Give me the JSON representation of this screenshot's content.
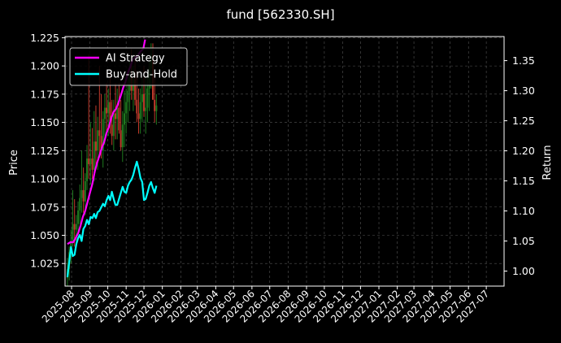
{
  "chart_data": {
    "type": "line",
    "title": "fund [562330.SH]",
    "ylabel": "Price",
    "y2label": "Return",
    "ylim": [
      1.005,
      1.226
    ],
    "y2lim": [
      0.975,
      1.39
    ],
    "y_ticks": [
      "1.025",
      "1.050",
      "1.075",
      "1.100",
      "1.125",
      "1.150",
      "1.175",
      "1.200",
      "1.225"
    ],
    "y2_ticks": [
      "1.00",
      "1.05",
      "1.10",
      "1.15",
      "1.20",
      "1.25",
      "1.30",
      "1.35"
    ],
    "x_ticks": [
      "2025-08",
      "2025-09",
      "2025-10",
      "2025-11",
      "2025-12",
      "2026-01",
      "2026-02",
      "2026-03",
      "2026-04",
      "2026-05",
      "2026-06",
      "2026-07",
      "2026-08",
      "2026-09",
      "2026-10",
      "2026-11",
      "2026-12",
      "2027-01",
      "2027-02",
      "2027-03",
      "2027-04",
      "2027-05",
      "2027-06",
      "2027-07"
    ],
    "grid": true,
    "legend_position": "top-left",
    "colors": {
      "background": "#000000",
      "grid": "#555555",
      "text": "#ffffff",
      "up": "#1f7a1f",
      "down": "#c0392b",
      "ai_strategy": "#ff00ff",
      "buy_and_hold": "#00ffff"
    },
    "candlestick": {
      "name": "Price",
      "axis": "left",
      "dates": [
        "2025-07-25",
        "2025-07-28",
        "2025-07-31",
        "2025-08-03",
        "2025-08-06",
        "2025-08-09",
        "2025-08-12",
        "2025-08-15",
        "2025-08-18",
        "2025-08-21",
        "2025-08-24",
        "2025-08-27",
        "2025-08-30",
        "2025-09-02",
        "2025-09-05",
        "2025-09-08",
        "2025-09-11",
        "2025-09-14",
        "2025-09-17",
        "2025-09-20",
        "2025-09-23",
        "2025-09-26",
        "2025-09-29",
        "2025-10-02",
        "2025-10-05",
        "2025-10-08",
        "2025-10-11",
        "2025-10-14",
        "2025-10-17",
        "2025-10-20",
        "2025-10-23",
        "2025-10-26",
        "2025-10-29",
        "2025-11-01",
        "2025-11-04",
        "2025-11-07",
        "2025-11-10",
        "2025-11-13",
        "2025-11-16",
        "2025-11-19",
        "2025-11-22",
        "2025-11-25",
        "2025-11-28",
        "2025-12-01",
        "2025-12-04",
        "2025-12-07",
        "2025-12-10",
        "2025-12-13",
        "2025-12-16",
        "2025-12-19",
        "2025-12-22"
      ],
      "open": [
        1.012,
        1.02,
        1.035,
        1.045,
        1.06,
        1.055,
        1.06,
        1.072,
        1.083,
        1.09,
        1.08,
        1.098,
        1.118,
        1.113,
        1.118,
        1.108,
        1.133,
        1.125,
        1.143,
        1.138,
        1.125,
        1.153,
        1.163,
        1.158,
        1.168,
        1.148,
        1.138,
        1.158,
        1.153,
        1.163,
        1.143,
        1.128,
        1.148,
        1.158,
        1.168,
        1.178,
        1.19,
        1.178,
        1.188,
        1.17,
        1.158,
        1.153,
        1.168,
        1.175,
        1.16,
        1.163,
        1.18,
        1.198,
        1.21,
        1.17,
        1.16
      ],
      "high": [
        1.03,
        1.04,
        1.055,
        1.09,
        1.082,
        1.068,
        1.08,
        1.095,
        1.125,
        1.11,
        1.105,
        1.13,
        1.21,
        1.15,
        1.145,
        1.16,
        1.165,
        1.155,
        1.2,
        1.175,
        1.16,
        1.175,
        1.185,
        1.18,
        1.195,
        1.17,
        1.17,
        1.185,
        1.18,
        1.185,
        1.17,
        1.16,
        1.178,
        1.18,
        1.19,
        1.205,
        1.215,
        1.2,
        1.21,
        1.195,
        1.18,
        1.18,
        1.19,
        1.2,
        1.19,
        1.195,
        1.205,
        1.22,
        1.22,
        1.192,
        1.175
      ],
      "low": [
        1.005,
        1.01,
        1.025,
        1.04,
        1.04,
        1.043,
        1.05,
        1.06,
        1.07,
        1.07,
        1.068,
        1.09,
        1.1,
        1.095,
        1.1,
        1.098,
        1.11,
        1.108,
        1.12,
        1.118,
        1.11,
        1.13,
        1.14,
        1.138,
        1.14,
        1.13,
        1.125,
        1.135,
        1.135,
        1.14,
        1.125,
        1.115,
        1.128,
        1.14,
        1.15,
        1.16,
        1.17,
        1.16,
        1.165,
        1.15,
        1.14,
        1.14,
        1.15,
        1.155,
        1.14,
        1.15,
        1.16,
        1.18,
        1.175,
        1.15,
        1.148
      ],
      "close": [
        1.02,
        1.035,
        1.045,
        1.06,
        1.055,
        1.06,
        1.072,
        1.083,
        1.09,
        1.08,
        1.098,
        1.118,
        1.113,
        1.118,
        1.108,
        1.133,
        1.125,
        1.143,
        1.138,
        1.125,
        1.153,
        1.163,
        1.158,
        1.168,
        1.148,
        1.138,
        1.158,
        1.153,
        1.163,
        1.143,
        1.128,
        1.148,
        1.158,
        1.168,
        1.178,
        1.19,
        1.178,
        1.188,
        1.17,
        1.158,
        1.153,
        1.168,
        1.175,
        1.16,
        1.163,
        1.18,
        1.198,
        1.21,
        1.17,
        1.16,
        1.165
      ]
    },
    "series": [
      {
        "name": "AI Strategy",
        "axis": "right",
        "x": [
          "2025-07-25",
          "2025-07-30",
          "2025-08-04",
          "2025-08-08",
          "2025-08-12",
          "2025-08-16",
          "2025-08-20",
          "2025-08-24",
          "2025-08-28",
          "2025-09-01",
          "2025-09-05",
          "2025-09-09",
          "2025-09-13",
          "2025-09-17",
          "2025-09-21",
          "2025-09-25",
          "2025-09-29",
          "2025-10-03",
          "2025-10-07",
          "2025-10-11",
          "2025-10-15",
          "2025-10-19",
          "2025-10-23",
          "2025-10-27",
          "2025-10-31",
          "2025-11-04",
          "2025-11-08",
          "2025-11-12",
          "2025-11-16",
          "2025-11-20",
          "2025-11-25",
          "2025-11-30",
          "2025-12-03"
        ],
        "values": [
          1.045,
          1.048,
          1.048,
          1.055,
          1.063,
          1.075,
          1.09,
          1.1,
          1.115,
          1.13,
          1.145,
          1.165,
          1.18,
          1.192,
          1.205,
          1.215,
          1.23,
          1.24,
          1.255,
          1.265,
          1.27,
          1.28,
          1.292,
          1.305,
          1.315,
          1.33,
          1.34,
          1.352,
          1.355,
          1.358,
          1.365,
          1.37,
          1.385
        ]
      },
      {
        "name": "Buy-and-Hold",
        "axis": "right",
        "x": [
          "2025-07-25",
          "2025-07-28",
          "2025-07-31",
          "2025-08-03",
          "2025-08-06",
          "2025-08-09",
          "2025-08-12",
          "2025-08-15",
          "2025-08-18",
          "2025-08-21",
          "2025-08-24",
          "2025-08-27",
          "2025-08-30",
          "2025-09-02",
          "2025-09-05",
          "2025-09-08",
          "2025-09-11",
          "2025-09-14",
          "2025-09-17",
          "2025-09-20",
          "2025-09-23",
          "2025-09-26",
          "2025-09-29",
          "2025-10-02",
          "2025-10-05",
          "2025-10-08",
          "2025-10-11",
          "2025-10-14",
          "2025-10-17",
          "2025-10-20",
          "2025-10-23",
          "2025-10-26",
          "2025-10-29",
          "2025-11-01",
          "2025-11-04",
          "2025-11-07",
          "2025-11-10",
          "2025-11-13",
          "2025-11-16",
          "2025-11-19",
          "2025-11-22",
          "2025-11-25",
          "2025-11-28",
          "2025-12-01",
          "2025-12-04",
          "2025-12-07",
          "2025-12-10",
          "2025-12-13",
          "2025-12-16",
          "2025-12-19",
          "2025-12-22"
        ],
        "values": [
          0.99,
          1.015,
          1.04,
          1.025,
          1.027,
          1.045,
          1.055,
          1.06,
          1.05,
          1.07,
          1.075,
          1.085,
          1.078,
          1.09,
          1.088,
          1.095,
          1.088,
          1.098,
          1.1,
          1.106,
          1.112,
          1.108,
          1.118,
          1.125,
          1.118,
          1.132,
          1.12,
          1.11,
          1.11,
          1.12,
          1.13,
          1.14,
          1.132,
          1.13,
          1.142,
          1.148,
          1.152,
          1.16,
          1.172,
          1.182,
          1.17,
          1.155,
          1.148,
          1.118,
          1.12,
          1.13,
          1.142,
          1.148,
          1.138,
          1.13,
          1.142
        ]
      }
    ]
  }
}
